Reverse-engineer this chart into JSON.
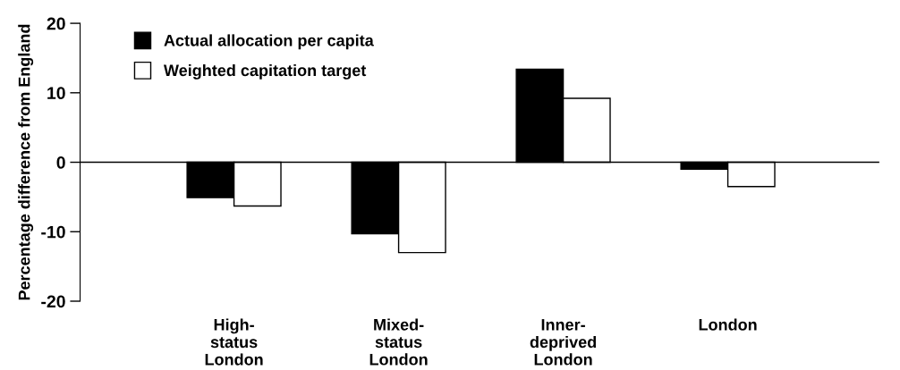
{
  "chart_data": {
    "type": "bar",
    "ylabel": "Percentage difference from England",
    "categories": [
      "High-\nstatus\nLondon",
      "Mixed-\nstatus\nLondon",
      "Inner-\ndeprived\nLondon",
      "London"
    ],
    "series": [
      {
        "name": "Actual allocation per capita",
        "color": "#000000",
        "values": [
          -5.1,
          -10.3,
          13.4,
          -1.0
        ]
      },
      {
        "name": "Weighted capitation target",
        "color": "#ffffff",
        "values": [
          -6.3,
          -13.0,
          9.2,
          -3.5
        ]
      }
    ],
    "ylim": [
      -20,
      20
    ],
    "yticks": [
      -20,
      -10,
      0,
      10,
      20
    ],
    "ref_lines": [
      {
        "axis": "y",
        "value": 0,
        "color": "#000000"
      }
    ],
    "grid": false,
    "legend": "top left"
  }
}
